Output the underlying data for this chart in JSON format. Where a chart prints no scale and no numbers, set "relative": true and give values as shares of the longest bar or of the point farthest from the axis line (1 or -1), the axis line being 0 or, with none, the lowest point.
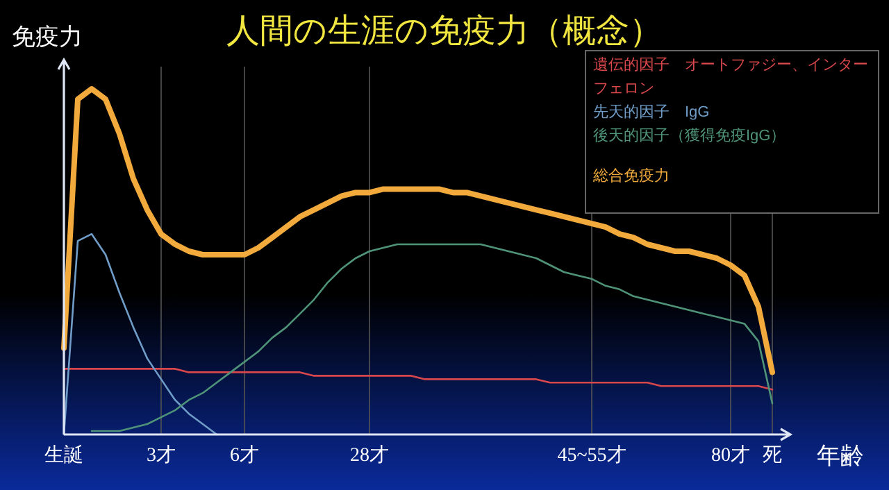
{
  "chart_data": {
    "type": "line",
    "title": "人間の生涯の免疫力（概念）",
    "xlabel": "年齢",
    "ylabel": "免疫力",
    "relative": true,
    "grid": "x",
    "legend": "top right",
    "categories": [
      "生誕",
      null,
      null,
      null,
      null,
      null,
      null,
      "3才",
      null,
      null,
      null,
      null,
      null,
      "6才",
      null,
      null,
      null,
      null,
      null,
      null,
      null,
      null,
      "28才",
      null,
      null,
      null,
      null,
      null,
      null,
      null,
      null,
      null,
      null,
      null,
      null,
      null,
      null,
      null,
      "45~55才",
      null,
      null,
      null,
      null,
      null,
      null,
      null,
      null,
      null,
      "80才",
      null,
      null,
      "死",
      null
    ],
    "series": [
      {
        "name": "遺伝的因子　オートファジー、インターフェロン",
        "color": "#d8474c",
        "values": [
          0.19,
          0.19,
          0.19,
          0.19,
          0.19,
          0.19,
          0.19,
          0.19,
          0.19,
          0.18,
          0.18,
          0.18,
          0.18,
          0.18,
          0.18,
          0.18,
          0.18,
          0.18,
          0.17,
          0.17,
          0.17,
          0.17,
          0.17,
          0.17,
          0.17,
          0.17,
          0.16,
          0.16,
          0.16,
          0.16,
          0.16,
          0.16,
          0.16,
          0.16,
          0.16,
          0.15,
          0.15,
          0.15,
          0.15,
          0.15,
          0.15,
          0.15,
          0.15,
          0.14,
          0.14,
          0.14,
          0.14,
          0.14,
          0.14,
          0.14,
          0.14,
          0.13,
          null
        ]
      },
      {
        "name": "先天的因子　IgG",
        "color": "#6f9dc8",
        "values": [
          0,
          0.56,
          0.58,
          0.52,
          0.41,
          0.31,
          0.22,
          0.16,
          0.1,
          0.06,
          0.03,
          0,
          null,
          null,
          null,
          null,
          null,
          null,
          null,
          null,
          null,
          null,
          null,
          null,
          null,
          null,
          null,
          null,
          null,
          null,
          null,
          null,
          null,
          null,
          null,
          null,
          null,
          null,
          null,
          null,
          null,
          null,
          null,
          null,
          null,
          null,
          null,
          null,
          null,
          null,
          null,
          null,
          null
        ]
      },
      {
        "name": "後天的因子（獲得免疫IgG）",
        "color": "#4f9479",
        "values": [
          null,
          null,
          0.01,
          0.01,
          0.01,
          0.02,
          0.03,
          0.05,
          0.07,
          0.1,
          0.12,
          0.15,
          0.18,
          0.21,
          0.24,
          0.28,
          0.31,
          0.35,
          0.39,
          0.44,
          0.48,
          0.51,
          0.53,
          0.54,
          0.55,
          0.55,
          0.55,
          0.55,
          0.55,
          0.55,
          0.55,
          0.54,
          0.53,
          0.52,
          0.51,
          0.49,
          0.47,
          0.46,
          0.45,
          0.43,
          0.42,
          0.4,
          0.39,
          0.38,
          0.37,
          0.36,
          0.35,
          0.34,
          0.33,
          0.32,
          0.27,
          0.09,
          null
        ]
      },
      {
        "name": "総合免疫力",
        "color": "#f2aa3c",
        "values": [
          0.25,
          0.97,
          1.0,
          0.97,
          0.87,
          0.74,
          0.65,
          0.58,
          0.55,
          0.53,
          0.52,
          0.52,
          0.52,
          0.52,
          0.54,
          0.57,
          0.6,
          0.63,
          0.65,
          0.67,
          0.69,
          0.7,
          0.7,
          0.71,
          0.71,
          0.71,
          0.71,
          0.71,
          0.7,
          0.7,
          0.69,
          0.68,
          0.67,
          0.66,
          0.65,
          0.64,
          0.63,
          0.62,
          0.61,
          0.6,
          0.58,
          0.57,
          0.55,
          0.54,
          0.53,
          0.53,
          0.52,
          0.51,
          0.49,
          0.46,
          0.37,
          0.18,
          null
        ]
      }
    ]
  }
}
